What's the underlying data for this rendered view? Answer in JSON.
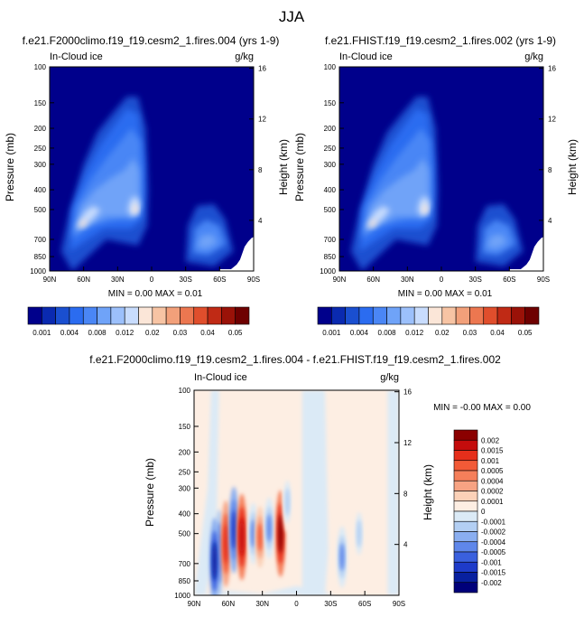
{
  "page_title": "JJA",
  "chart_data": [
    {
      "type": "heatmap",
      "title": "f.e21.F2000climo.f19_f19.cesm2_1.fires.004 (yrs 1-9)",
      "subtitle_left": "In-Cloud ice",
      "subtitle_right": "g/kg",
      "ylabel": "Pressure (mb)",
      "ylabel_right": "Height (km)",
      "xticks": [
        "90N",
        "60N",
        "30N",
        "0",
        "30S",
        "60S",
        "90S"
      ],
      "yticks": [
        "100",
        "150",
        "200",
        "250",
        "300",
        "400",
        "500",
        "700",
        "850",
        "1000"
      ],
      "yticks_right": [
        "16",
        "12",
        "8",
        "4"
      ],
      "minmax_text": "MIN =   0.00   MAX =   0.01",
      "colorbar_labels": [
        "0.001",
        "0.004",
        "0.008",
        "0.012",
        "0.02",
        "0.03",
        "0.04",
        "0.05"
      ],
      "blobs": [
        {
          "lat": 55,
          "p": 400,
          "value": 0.004
        },
        {
          "lat": 63,
          "p": 550,
          "value": 0.008
        },
        {
          "lat": 65,
          "p": 620,
          "value": 0.012
        },
        {
          "lat": 14,
          "p": 350,
          "value": 0.006
        },
        {
          "lat": 14,
          "p": 500,
          "value": 0.012
        },
        {
          "lat": -50,
          "p": 700,
          "value": 0.006
        }
      ]
    },
    {
      "type": "heatmap",
      "title": "f.e21.FHIST.f19_f19.cesm2_1.fires.002 (yrs 1-9)",
      "subtitle_left": "In-Cloud ice",
      "subtitle_right": "g/kg",
      "ylabel": "Pressure (mb)",
      "ylabel_right": "Height (km)",
      "xticks": [
        "90N",
        "60N",
        "30N",
        "0",
        "30S",
        "60S",
        "90S"
      ],
      "yticks": [
        "100",
        "150",
        "200",
        "250",
        "300",
        "400",
        "500",
        "700",
        "850",
        "1000"
      ],
      "yticks_right": [
        "16",
        "12",
        "8",
        "4"
      ],
      "minmax_text": "MIN =   0.00   MAX =   0.01",
      "colorbar_labels": [
        "0.001",
        "0.004",
        "0.008",
        "0.012",
        "0.02",
        "0.03",
        "0.04",
        "0.05"
      ],
      "blobs": [
        {
          "lat": 55,
          "p": 400,
          "value": 0.004
        },
        {
          "lat": 63,
          "p": 550,
          "value": 0.008
        },
        {
          "lat": 65,
          "p": 620,
          "value": 0.012
        },
        {
          "lat": 14,
          "p": 350,
          "value": 0.006
        },
        {
          "lat": 14,
          "p": 500,
          "value": 0.012
        },
        {
          "lat": -50,
          "p": 700,
          "value": 0.006
        }
      ]
    },
    {
      "type": "heatmap",
      "title": "f.e21.F2000climo.f19_f19.cesm2_1.fires.004 - f.e21.FHIST.f19_f19.cesm2_1.fires.002",
      "subtitle_left": "In-Cloud ice",
      "subtitle_right": "g/kg",
      "ylabel": "Pressure (mb)",
      "ylabel_right": "Height (km)",
      "xticks": [
        "90N",
        "60N",
        "30N",
        "0",
        "30S",
        "60S",
        "90S"
      ],
      "yticks": [
        "100",
        "150",
        "200",
        "250",
        "300",
        "400",
        "500",
        "700",
        "850",
        "1000"
      ],
      "yticks_right": [
        "16",
        "12",
        "8",
        "4"
      ],
      "minmax_text": "MIN =  -0.00   MAX =   0.00",
      "colorbar_labels": [
        "0.002",
        "0.0015",
        "0.001",
        "0.0005",
        "0.0004",
        "0.0002",
        "0.0001",
        "0",
        "-0.0001",
        "-0.0002",
        "-0.0004",
        "-0.0005",
        "-0.001",
        "-0.0015",
        "-0.002"
      ],
      "features": [
        {
          "lat": 68,
          "p": 620,
          "value": -0.001
        },
        {
          "lat": 72,
          "p": 680,
          "value": -0.002
        },
        {
          "lat": 62,
          "p": 560,
          "value": 0.001
        },
        {
          "lat": 55,
          "p": 480,
          "value": -0.0015
        },
        {
          "lat": 48,
          "p": 520,
          "value": 0.0015
        },
        {
          "lat": 38,
          "p": 500,
          "value": -0.0005
        },
        {
          "lat": 32,
          "p": 520,
          "value": 0.0005
        },
        {
          "lat": 24,
          "p": 470,
          "value": -0.0005
        },
        {
          "lat": 14,
          "p": 500,
          "value": 0.002
        },
        {
          "lat": 8,
          "p": 350,
          "value": -0.0002
        },
        {
          "lat": -40,
          "p": 650,
          "value": -0.0005
        },
        {
          "lat": -55,
          "p": 500,
          "value": -0.0002
        }
      ]
    }
  ],
  "colors": {
    "frame": "#000000",
    "absolute_palette": [
      "#00008b",
      "#0a2ab0",
      "#1a4fd0",
      "#2b6cf0",
      "#4a86f5",
      "#6fa3f8",
      "#9cc0fb",
      "#c8dcfd",
      "#fbe6d8",
      "#f7c4a4",
      "#f2a07a",
      "#ec7750",
      "#e04e2c",
      "#c02a15",
      "#9a1208",
      "#6e0000"
    ],
    "difference_palette": [
      "#8b0000",
      "#c40c0c",
      "#e62f1b",
      "#f25a37",
      "#f57f5a",
      "#f7a383",
      "#fbd1b8",
      "#fdeee3",
      "#dbeaf6",
      "#b3cff3",
      "#8aaef0",
      "#5f87ea",
      "#3a60de",
      "#1e3bc9",
      "#08209f",
      "#00007a"
    ]
  }
}
